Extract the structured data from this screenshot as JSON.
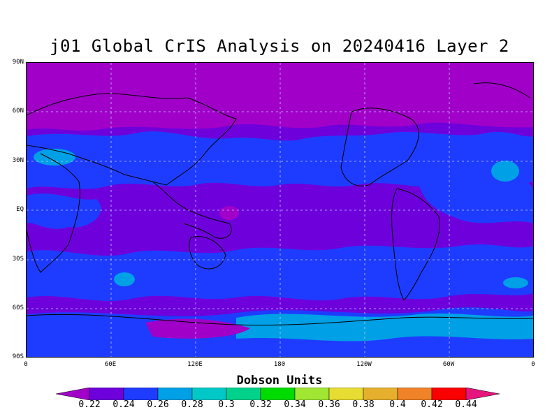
{
  "title": "j01 Global CrIS Analysis on 20240416 Layer 2",
  "lat_labels": [
    "90N",
    "60N",
    "30N",
    "EQ",
    "30S",
    "60S",
    "90S"
  ],
  "lon_labels": [
    "0",
    "60E",
    "120E",
    "180",
    "120W",
    "60W",
    "0"
  ],
  "colorbar": {
    "title": "Dobson Units",
    "labels": [
      "0.22",
      "0.24",
      "0.26",
      "0.28",
      "0.3",
      "0.32",
      "0.34",
      "0.36",
      "0.38",
      "0.4",
      "0.42",
      "0.44"
    ],
    "colors": [
      "#a000c8",
      "#6e00dc",
      "#1e3cff",
      "#00a0e6",
      "#00c8c8",
      "#00d28c",
      "#00dc00",
      "#a0e632",
      "#e6dc32",
      "#e6af2d",
      "#f08228",
      "#fa0000",
      "#e6147d"
    ]
  }
}
